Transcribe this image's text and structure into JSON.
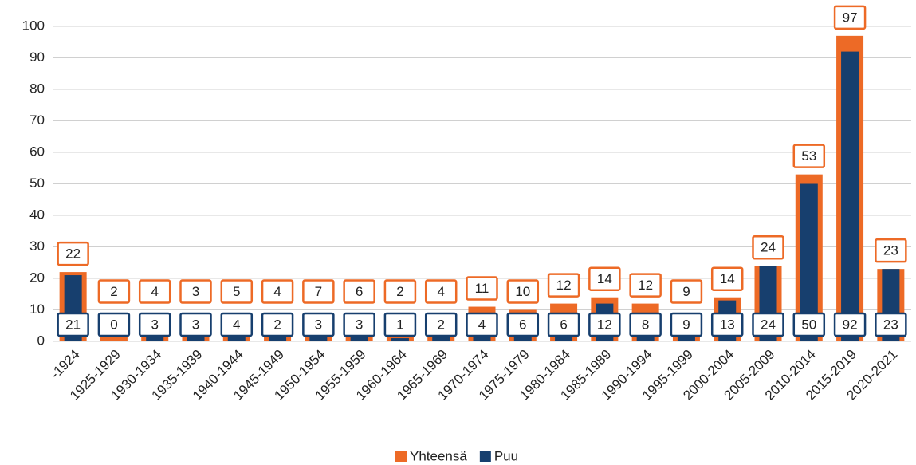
{
  "chart_data": {
    "type": "bar",
    "categories": [
      "-1924",
      "1925-1929",
      "1930-1934",
      "1935-1939",
      "1940-1944",
      "1945-1949",
      "1950-1954",
      "1955-1959",
      "1960-1964",
      "1965-1969",
      "1970-1974",
      "1975-1979",
      "1980-1984",
      "1985-1989",
      "1990-1994",
      "1995-1999",
      "2000-2004",
      "2005-2009",
      "2010-2014",
      "2015-2019",
      "2020-2021"
    ],
    "series": [
      {
        "name": "Yhteensä",
        "color": "#ed6a26",
        "values": [
          22,
          2,
          4,
          3,
          5,
          4,
          7,
          6,
          2,
          4,
          11,
          10,
          12,
          14,
          12,
          9,
          14,
          24,
          53,
          97,
          23
        ]
      },
      {
        "name": "Puu",
        "color": "#173f6e",
        "values": [
          21,
          0,
          3,
          3,
          4,
          2,
          3,
          3,
          1,
          2,
          4,
          6,
          6,
          12,
          8,
          9,
          13,
          24,
          50,
          92,
          23
        ]
      }
    ],
    "ylim": [
      0,
      100
    ],
    "yticks": [
      0,
      10,
      20,
      30,
      40,
      50,
      60,
      70,
      80,
      90,
      100
    ],
    "grid": true,
    "legend": "bottom"
  }
}
